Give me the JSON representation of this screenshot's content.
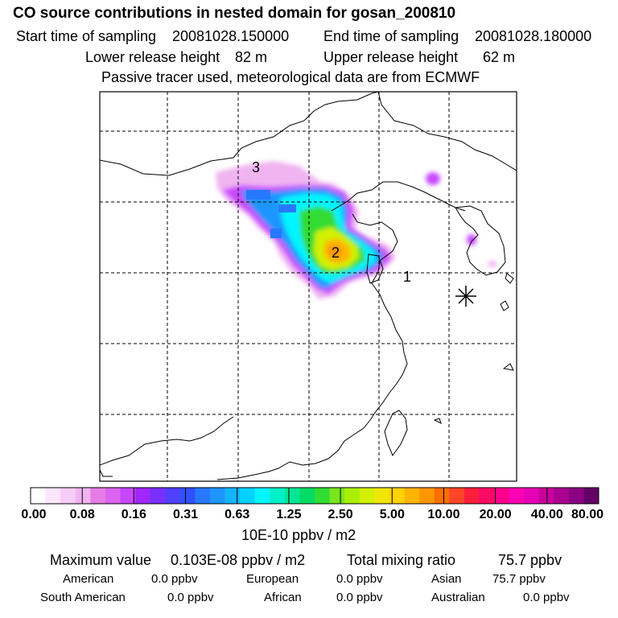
{
  "header": {
    "title": "CO  source contributions in nested domain for gosan_200810",
    "start_label": "Start time of sampling",
    "start_value": "20081028.150000",
    "end_label": "End time of sampling",
    "end_value": "20081028.180000",
    "lower_label": "Lower release height",
    "lower_value": "82 m",
    "upper_label": "Upper release height",
    "upper_value": "62 m",
    "note": "Passive tracer used, meteorological data are from ECMWF"
  },
  "map": {
    "labels": [
      "1",
      "2",
      "3"
    ],
    "receptor_icon": "asterisk-receptor-icon"
  },
  "legend": {
    "ticks": [
      "0.00",
      "0.08",
      "0.16",
      "0.31",
      "0.63",
      "1.25",
      "2.50",
      "5.00",
      "10.00",
      "20.00",
      "40.00",
      "80.00"
    ],
    "unit": "10E-10 ppbv / m2",
    "colors": [
      "#ffffff",
      "#fbe6fb",
      "#f6cdf6",
      "#f0b4f0",
      "#e67de6",
      "#dc64f0",
      "#c846ff",
      "#a028ff",
      "#7830ff",
      "#5040ff",
      "#3050ff",
      "#2878ff",
      "#1e96ff",
      "#14b4ff",
      "#00d2ff",
      "#00f5ff",
      "#00f0c8",
      "#00e696",
      "#00dc64",
      "#32dc32",
      "#78e61e",
      "#aaf000",
      "#d2f000",
      "#f0e600",
      "#ffd200",
      "#ffb400",
      "#ff9600",
      "#ff6e00",
      "#ff4628",
      "#ff1e3c",
      "#ff0a64",
      "#ff008c",
      "#ff00b4",
      "#e600b4",
      "#c8009b",
      "#aa0091",
      "#8c0082",
      "#640064"
    ]
  },
  "stats": {
    "max_label": "Maximum value",
    "max_value": "0.103E-08 ppbv / m2",
    "total_label": "Total mixing ratio",
    "total_value": "75.7 ppbv",
    "rows": [
      [
        {
          "label": "American",
          "value": "0.0 ppbv"
        },
        {
          "label": "European",
          "value": "0.0 ppbv"
        },
        {
          "label": "Asian",
          "value": "75.7 ppbv"
        }
      ],
      [
        {
          "label": "South American",
          "value": "0.0 ppbv"
        },
        {
          "label": "African",
          "value": "0.0 ppbv"
        },
        {
          "label": "Australian",
          "value": "0.0 ppbv"
        }
      ]
    ]
  }
}
